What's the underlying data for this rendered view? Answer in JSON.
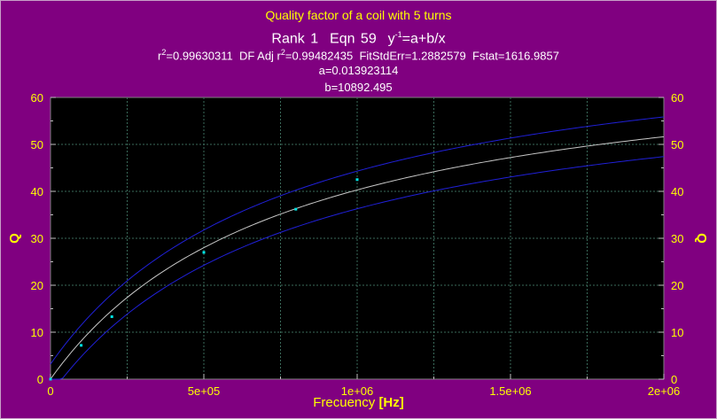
{
  "chart_data": {
    "type": "scatter",
    "title": "Quality factor of a coil with 5 turns",
    "rank_line": {
      "rank": "Rank 1",
      "eqn": "Eqn 59",
      "equation_base": "y",
      "equation_exp": "-1",
      "equation_rest": "=a+b/x"
    },
    "stats": {
      "r2_label": "r",
      "r2_exp": "2",
      "r2_value": "=0.99630311",
      "adj_label": "DF Adj r",
      "adj_exp": "2",
      "adj_value": "=0.99482435",
      "fitstderr": "FitStdErr=1.2882579",
      "fstat": "Fstat=1616.9857"
    },
    "coef_a": "a=0.013923114",
    "coef_b": "b=10892.495",
    "xlabel": "Frecuency",
    "xlabel_unit": "[Hz]",
    "ylabel": "Q",
    "ylabel_right": "Q",
    "xlim": [
      0,
      2000000
    ],
    "ylim": [
      0,
      60
    ],
    "xticks": [
      {
        "value": 0,
        "label": "0"
      },
      {
        "value": 500000,
        "label": "5e+05"
      },
      {
        "value": 1000000,
        "label": "1e+06"
      },
      {
        "value": 1500000,
        "label": "1.5e+06"
      },
      {
        "value": 2000000,
        "label": "2e+06"
      }
    ],
    "yticks": [
      0,
      10,
      20,
      30,
      40,
      50,
      60
    ],
    "grid": true,
    "fit": {
      "a": 0.013923114,
      "b": 10892.495
    },
    "points": [
      {
        "x": 0,
        "y": 0
      },
      {
        "x": 100000,
        "y": 7.2
      },
      {
        "x": 200000,
        "y": 13.3
      },
      {
        "x": 500000,
        "y": 27.0
      },
      {
        "x": 800000,
        "y": 36.2
      },
      {
        "x": 1000000,
        "y": 42.5
      }
    ],
    "colors": {
      "background": "#800080",
      "plot_area": "#000000",
      "fit_line": "#c8c8c8",
      "band_line": "#2020d8",
      "points": "#00e5e5",
      "axis_text": "#ffff00",
      "title_text": "#ffff00",
      "grid": "#3a6a5a"
    }
  }
}
